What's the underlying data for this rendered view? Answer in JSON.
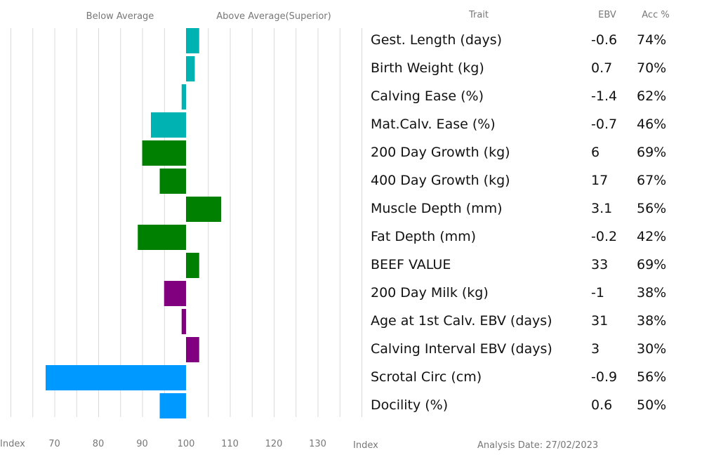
{
  "chart_data": {
    "type": "bar",
    "orientation": "horizontal",
    "header": {
      "below": "Below Average",
      "above": "Above Average(Superior)",
      "trait": "Trait",
      "ebv": "EBV",
      "acc": "Acc %"
    },
    "x_axis": {
      "label_left": "Index",
      "label_right": "Index",
      "ticks": [
        70,
        80,
        90,
        100,
        110,
        120,
        130
      ],
      "range": [
        60,
        140
      ],
      "baseline": 100
    },
    "analysis_date": "Analysis Date: 27/02/2023",
    "traits": [
      {
        "name": "Gest. Length (days)",
        "ebv": "-0.6",
        "acc": "74%",
        "index": 103,
        "color": "#00B3B3"
      },
      {
        "name": "Birth Weight (kg)",
        "ebv": "0.7",
        "acc": "70%",
        "index": 102,
        "color": "#00B3B3"
      },
      {
        "name": "Calving Ease (%)",
        "ebv": "-1.4",
        "acc": "62%",
        "index": 99,
        "color": "#00B3B3"
      },
      {
        "name": "Mat.Calv. Ease (%)",
        "ebv": "-0.7",
        "acc": "46%",
        "index": 92,
        "color": "#00B3B3"
      },
      {
        "name": "200 Day Growth (kg)",
        "ebv": "6",
        "acc": "69%",
        "index": 90,
        "color": "#008000"
      },
      {
        "name": "400 Day Growth (kg)",
        "ebv": "17",
        "acc": "67%",
        "index": 94,
        "color": "#008000"
      },
      {
        "name": "Muscle Depth (mm)",
        "ebv": "3.1",
        "acc": "56%",
        "index": 108,
        "color": "#008000"
      },
      {
        "name": "Fat Depth (mm)",
        "ebv": "-0.2",
        "acc": "42%",
        "index": 89,
        "color": "#008000"
      },
      {
        "name": "BEEF VALUE",
        "ebv": "33",
        "acc": "69%",
        "index": 103,
        "color": "#008000"
      },
      {
        "name": "200 Day Milk (kg)",
        "ebv": "-1",
        "acc": "38%",
        "index": 95,
        "color": "#800080"
      },
      {
        "name": "Age at 1st Calv. EBV (days)",
        "ebv": "31",
        "acc": "38%",
        "index": 99,
        "color": "#800080"
      },
      {
        "name": "Calving Interval EBV (days)",
        "ebv": "3",
        "acc": "30%",
        "index": 103,
        "color": "#800080"
      },
      {
        "name": "Scrotal Circ (cm)",
        "ebv": "-0.9",
        "acc": "56%",
        "index": 68,
        "color": "#0099FF"
      },
      {
        "name": "Docility (%)",
        "ebv": "0.6",
        "acc": "50%",
        "index": 94,
        "color": "#0099FF"
      }
    ]
  }
}
